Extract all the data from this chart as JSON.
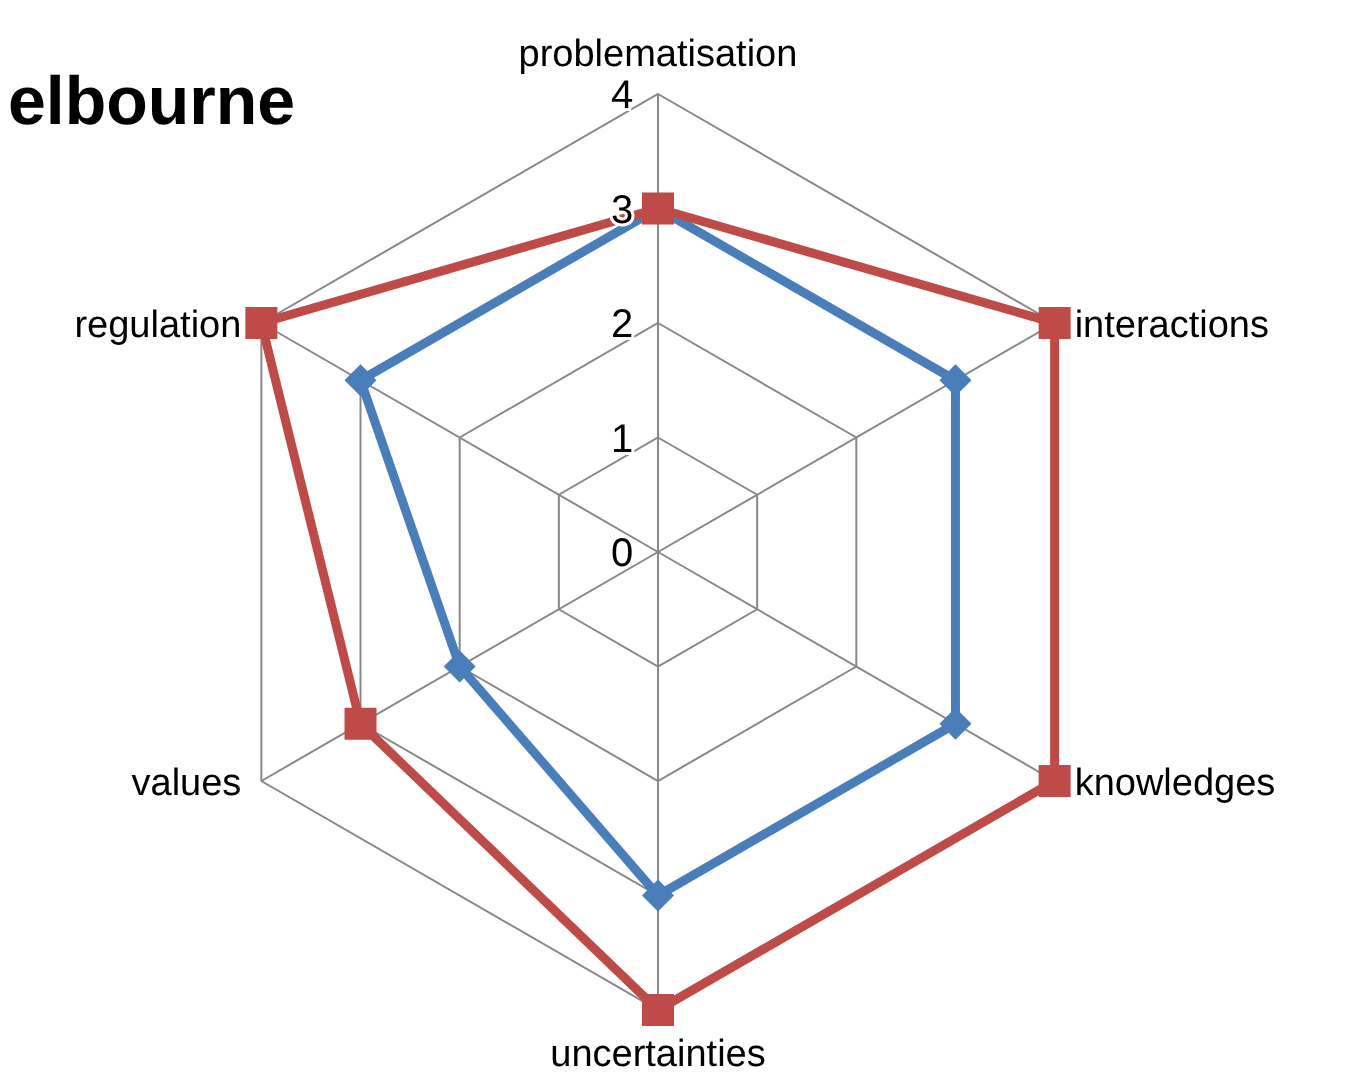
{
  "chart_data": {
    "type": "radar",
    "title": "elbourne",
    "categories": [
      "problematisation",
      "interactions",
      "knowledges",
      "uncertainties",
      "values",
      "regulation"
    ],
    "ylim": [
      0,
      4
    ],
    "yticks": [
      0,
      1,
      2,
      3,
      4
    ],
    "grid": true,
    "line_style": "solid",
    "series": [
      {
        "color": "#4a7ebb",
        "marker": "diamond",
        "values": [
          3,
          3,
          3,
          3,
          2,
          3
        ]
      },
      {
        "color": "#be4b48",
        "marker": "square",
        "values": [
          3,
          4,
          4,
          4,
          3,
          4
        ]
      }
    ]
  }
}
